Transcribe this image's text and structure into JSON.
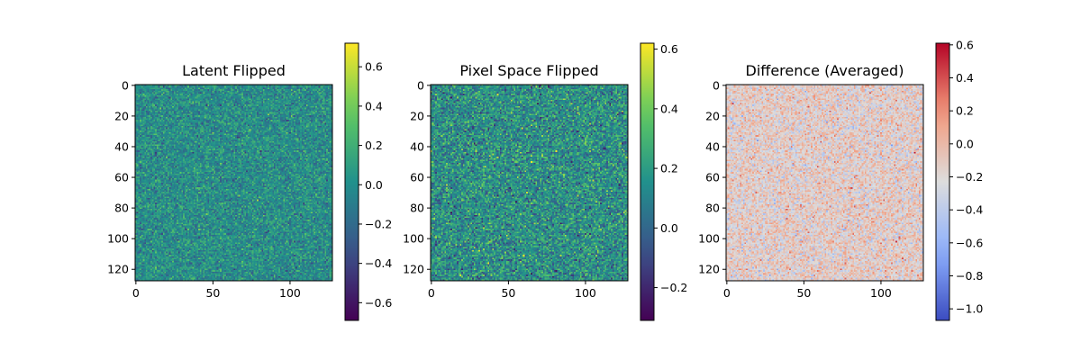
{
  "chart_data": [
    {
      "type": "heatmap",
      "title": "Latent Flipped",
      "colormap": "viridis",
      "grid_size": [
        128,
        128
      ],
      "xlim": [
        0,
        128
      ],
      "ylim": [
        128,
        0
      ],
      "xticks": [
        "0",
        "50",
        "100"
      ],
      "yticks": [
        "0",
        "20",
        "40",
        "60",
        "80",
        "100",
        "120"
      ],
      "colorbar": {
        "min": -0.69,
        "max": 0.72,
        "ticks": [
          "0.6",
          "0.4",
          "0.2",
          "0.0",
          "−0.2",
          "−0.4",
          "−0.6"
        ]
      },
      "value_distribution": {
        "mean": 0.0,
        "std": 0.14
      }
    },
    {
      "type": "heatmap",
      "title": "Pixel Space Flipped",
      "colormap": "viridis",
      "grid_size": [
        128,
        128
      ],
      "xlim": [
        0,
        128
      ],
      "ylim": [
        128,
        0
      ],
      "xticks": [
        "0",
        "50",
        "100"
      ],
      "yticks": [
        "0",
        "20",
        "40",
        "60",
        "80",
        "100",
        "120"
      ],
      "colorbar": {
        "min": -0.31,
        "max": 0.62,
        "ticks": [
          "0.6",
          "0.4",
          "0.2",
          "0.0",
          "−0.2"
        ]
      },
      "value_distribution": {
        "mean": 0.15,
        "std": 0.13
      }
    },
    {
      "type": "heatmap",
      "title": "Difference (Averaged)",
      "colormap": "coolwarm",
      "grid_size": [
        128,
        128
      ],
      "xlim": [
        0,
        128
      ],
      "ylim": [
        128,
        0
      ],
      "xticks": [
        "0",
        "50",
        "100"
      ],
      "yticks": [
        "0",
        "20",
        "40",
        "60",
        "80",
        "100",
        "120"
      ],
      "colorbar": {
        "min": -1.07,
        "max": 0.61,
        "ticks": [
          "0.6",
          "0.4",
          "0.2",
          "0.0",
          "−0.2",
          "−0.4",
          "−0.6",
          "−0.8",
          "−1.0"
        ]
      },
      "value_distribution": {
        "mean": -0.15,
        "std": 0.17
      }
    }
  ]
}
